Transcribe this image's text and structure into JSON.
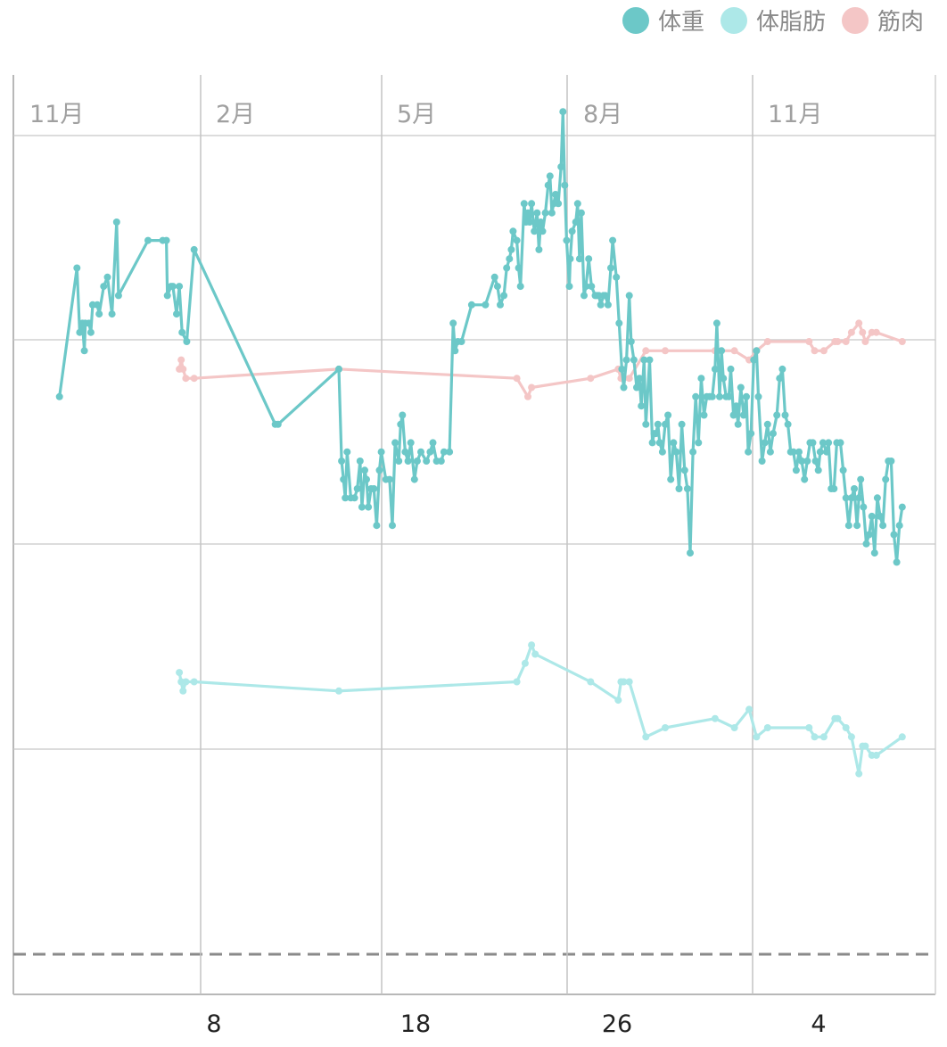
{
  "legend": [
    {
      "label": "体重",
      "color": "#6cc8c8"
    },
    {
      "label": "体脂肪",
      "color": "#ade8e8"
    },
    {
      "label": "筋肉",
      "color": "#f4c6c6"
    }
  ],
  "chart_data": {
    "type": "line",
    "month_labels": [
      "11月",
      "2月",
      "5月",
      "8月",
      "11月"
    ],
    "bottom_labels": [
      "8",
      "18",
      "26",
      "4"
    ],
    "grid": true,
    "legend_position": "top-right",
    "series": [
      {
        "name": "体重",
        "color": "#6cc8c8",
        "points": [
          [
            0.05,
            0.35
          ],
          [
            0.069,
            0.21
          ],
          [
            0.072,
            0.28
          ],
          [
            0.075,
            0.27
          ],
          [
            0.077,
            0.3
          ],
          [
            0.078,
            0.27
          ],
          [
            0.082,
            0.27
          ],
          [
            0.084,
            0.28
          ],
          [
            0.086,
            0.25
          ],
          [
            0.091,
            0.25
          ],
          [
            0.093,
            0.26
          ],
          [
            0.098,
            0.23
          ],
          [
            0.102,
            0.22
          ],
          [
            0.107,
            0.26
          ],
          [
            0.112,
            0.16
          ],
          [
            0.114,
            0.24
          ],
          [
            0.146,
            0.18
          ],
          [
            0.162,
            0.18
          ],
          [
            0.166,
            0.18
          ],
          [
            0.167,
            0.24
          ],
          [
            0.171,
            0.23
          ],
          [
            0.173,
            0.23
          ],
          [
            0.177,
            0.26
          ],
          [
            0.18,
            0.23
          ],
          [
            0.183,
            0.28
          ],
          [
            0.188,
            0.29
          ],
          [
            0.196,
            0.19
          ],
          [
            0.284,
            0.38
          ],
          [
            0.287,
            0.38
          ],
          [
            0.353,
            0.32
          ],
          [
            0.356,
            0.42
          ],
          [
            0.358,
            0.44
          ],
          [
            0.36,
            0.46
          ],
          [
            0.362,
            0.41
          ],
          [
            0.366,
            0.46
          ],
          [
            0.37,
            0.46
          ],
          [
            0.373,
            0.45
          ],
          [
            0.376,
            0.42
          ],
          [
            0.378,
            0.47
          ],
          [
            0.381,
            0.43
          ],
          [
            0.383,
            0.44
          ],
          [
            0.385,
            0.47
          ],
          [
            0.388,
            0.45
          ],
          [
            0.391,
            0.45
          ],
          [
            0.394,
            0.49
          ],
          [
            0.397,
            0.43
          ],
          [
            0.399,
            0.41
          ],
          [
            0.404,
            0.44
          ],
          [
            0.408,
            0.44
          ],
          [
            0.411,
            0.49
          ],
          [
            0.414,
            0.4
          ],
          [
            0.418,
            0.42
          ],
          [
            0.42,
            0.38
          ],
          [
            0.422,
            0.37
          ],
          [
            0.425,
            0.41
          ],
          [
            0.428,
            0.42
          ],
          [
            0.431,
            0.4
          ],
          [
            0.435,
            0.44
          ],
          [
            0.438,
            0.42
          ],
          [
            0.442,
            0.41
          ],
          [
            0.448,
            0.42
          ],
          [
            0.452,
            0.41
          ],
          [
            0.455,
            0.4
          ],
          [
            0.459,
            0.42
          ],
          [
            0.464,
            0.42
          ],
          [
            0.467,
            0.41
          ],
          [
            0.473,
            0.41
          ],
          [
            0.477,
            0.27
          ],
          [
            0.479,
            0.3
          ],
          [
            0.482,
            0.29
          ],
          [
            0.486,
            0.29
          ],
          [
            0.497,
            0.25
          ],
          [
            0.512,
            0.25
          ],
          [
            0.522,
            0.22
          ],
          [
            0.525,
            0.23
          ],
          [
            0.528,
            0.25
          ],
          [
            0.532,
            0.24
          ],
          [
            0.535,
            0.21
          ],
          [
            0.538,
            0.2
          ],
          [
            0.54,
            0.19
          ],
          [
            0.542,
            0.17
          ],
          [
            0.546,
            0.18
          ],
          [
            0.548,
            0.21
          ],
          [
            0.55,
            0.23
          ],
          [
            0.554,
            0.14
          ],
          [
            0.556,
            0.16
          ],
          [
            0.558,
            0.15
          ],
          [
            0.56,
            0.16
          ],
          [
            0.562,
            0.14
          ],
          [
            0.565,
            0.17
          ],
          [
            0.568,
            0.15
          ],
          [
            0.57,
            0.19
          ],
          [
            0.572,
            0.16
          ],
          [
            0.574,
            0.17
          ],
          [
            0.577,
            0.15
          ],
          [
            0.58,
            0.12
          ],
          [
            0.582,
            0.11
          ],
          [
            0.584,
            0.15
          ],
          [
            0.586,
            0.14
          ],
          [
            0.588,
            0.13
          ],
          [
            0.591,
            0.14
          ],
          [
            0.594,
            0.1
          ],
          [
            0.596,
            0.04
          ],
          [
            0.598,
            0.12
          ],
          [
            0.6,
            0.18
          ],
          [
            0.603,
            0.23
          ],
          [
            0.604,
            0.2
          ],
          [
            0.606,
            0.17
          ],
          [
            0.61,
            0.16
          ],
          [
            0.612,
            0.14
          ],
          [
            0.614,
            0.2
          ],
          [
            0.616,
            0.15
          ],
          [
            0.619,
            0.24
          ],
          [
            0.621,
            0.23
          ],
          [
            0.624,
            0.2
          ],
          [
            0.627,
            0.23
          ],
          [
            0.631,
            0.24
          ],
          [
            0.633,
            0.24
          ],
          [
            0.635,
            0.24
          ],
          [
            0.637,
            0.25
          ],
          [
            0.64,
            0.24
          ],
          [
            0.642,
            0.24
          ],
          [
            0.645,
            0.25
          ],
          [
            0.648,
            0.21
          ],
          [
            0.65,
            0.18
          ],
          [
            0.654,
            0.22
          ],
          [
            0.657,
            0.27
          ],
          [
            0.66,
            0.32
          ],
          [
            0.662,
            0.34
          ],
          [
            0.665,
            0.31
          ],
          [
            0.668,
            0.24
          ],
          [
            0.67,
            0.29
          ],
          [
            0.673,
            0.31
          ],
          [
            0.676,
            0.34
          ],
          [
            0.679,
            0.33
          ],
          [
            0.681,
            0.36
          ],
          [
            0.684,
            0.31
          ],
          [
            0.686,
            0.38
          ],
          [
            0.69,
            0.31
          ],
          [
            0.693,
            0.4
          ],
          [
            0.695,
            0.39
          ],
          [
            0.697,
            0.39
          ],
          [
            0.699,
            0.38
          ],
          [
            0.701,
            0.4
          ],
          [
            0.704,
            0.41
          ],
          [
            0.707,
            0.38
          ],
          [
            0.71,
            0.37
          ],
          [
            0.713,
            0.44
          ],
          [
            0.716,
            0.4
          ],
          [
            0.719,
            0.41
          ],
          [
            0.722,
            0.45
          ],
          [
            0.725,
            0.38
          ],
          [
            0.728,
            0.43
          ],
          [
            0.731,
            0.45
          ],
          [
            0.734,
            0.52
          ],
          [
            0.737,
            0.41
          ],
          [
            0.74,
            0.35
          ],
          [
            0.743,
            0.4
          ],
          [
            0.746,
            0.33
          ],
          [
            0.749,
            0.37
          ],
          [
            0.752,
            0.35
          ],
          [
            0.755,
            0.35
          ],
          [
            0.758,
            0.35
          ],
          [
            0.761,
            0.32
          ],
          [
            0.763,
            0.27
          ],
          [
            0.766,
            0.35
          ],
          [
            0.768,
            0.3
          ],
          [
            0.77,
            0.33
          ],
          [
            0.773,
            0.35
          ],
          [
            0.776,
            0.35
          ],
          [
            0.778,
            0.32
          ],
          [
            0.781,
            0.37
          ],
          [
            0.784,
            0.36
          ],
          [
            0.786,
            0.38
          ],
          [
            0.789,
            0.34
          ],
          [
            0.792,
            0.37
          ],
          [
            0.795,
            0.35
          ],
          [
            0.797,
            0.41
          ],
          [
            0.8,
            0.39
          ],
          [
            0.803,
            0.31
          ],
          [
            0.806,
            0.3
          ],
          [
            0.808,
            0.35
          ],
          [
            0.812,
            0.42
          ],
          [
            0.815,
            0.4
          ],
          [
            0.818,
            0.38
          ],
          [
            0.821,
            0.41
          ],
          [
            0.824,
            0.39
          ],
          [
            0.828,
            0.37
          ],
          [
            0.831,
            0.33
          ],
          [
            0.834,
            0.32
          ],
          [
            0.837,
            0.37
          ],
          [
            0.84,
            0.38
          ],
          [
            0.843,
            0.41
          ],
          [
            0.846,
            0.41
          ],
          [
            0.849,
            0.43
          ],
          [
            0.852,
            0.41
          ],
          [
            0.855,
            0.42
          ],
          [
            0.858,
            0.44
          ],
          [
            0.861,
            0.42
          ],
          [
            0.864,
            0.4
          ],
          [
            0.867,
            0.4
          ],
          [
            0.87,
            0.42
          ],
          [
            0.873,
            0.43
          ],
          [
            0.875,
            0.41
          ],
          [
            0.878,
            0.4
          ],
          [
            0.882,
            0.41
          ],
          [
            0.884,
            0.4
          ],
          [
            0.887,
            0.45
          ],
          [
            0.89,
            0.45
          ],
          [
            0.893,
            0.4
          ],
          [
            0.897,
            0.4
          ],
          [
            0.9,
            0.43
          ],
          [
            0.903,
            0.46
          ],
          [
            0.906,
            0.49
          ],
          [
            0.909,
            0.46
          ],
          [
            0.912,
            0.45
          ],
          [
            0.915,
            0.49
          ],
          [
            0.917,
            0.46
          ],
          [
            0.919,
            0.44
          ],
          [
            0.922,
            0.47
          ],
          [
            0.925,
            0.51
          ],
          [
            0.928,
            0.5
          ],
          [
            0.931,
            0.48
          ],
          [
            0.934,
            0.52
          ],
          [
            0.937,
            0.46
          ],
          [
            0.94,
            0.48
          ],
          [
            0.943,
            0.49
          ],
          [
            0.946,
            0.44
          ],
          [
            0.949,
            0.42
          ],
          [
            0.952,
            0.42
          ],
          [
            0.955,
            0.5
          ],
          [
            0.958,
            0.53
          ],
          [
            0.961,
            0.49
          ],
          [
            0.964,
            0.47
          ]
        ]
      },
      {
        "name": "体脂肪",
        "color": "#ade8e8",
        "points": [
          [
            0.18,
            0.65
          ],
          [
            0.182,
            0.66
          ],
          [
            0.184,
            0.67
          ],
          [
            0.187,
            0.66
          ],
          [
            0.196,
            0.66
          ],
          [
            0.353,
            0.67
          ],
          [
            0.546,
            0.66
          ],
          [
            0.555,
            0.64
          ],
          [
            0.562,
            0.62
          ],
          [
            0.566,
            0.63
          ],
          [
            0.626,
            0.66
          ],
          [
            0.656,
            0.68
          ],
          [
            0.659,
            0.66
          ],
          [
            0.662,
            0.66
          ],
          [
            0.668,
            0.66
          ],
          [
            0.686,
            0.72
          ],
          [
            0.707,
            0.71
          ],
          [
            0.761,
            0.7
          ],
          [
            0.782,
            0.71
          ],
          [
            0.798,
            0.69
          ],
          [
            0.806,
            0.72
          ],
          [
            0.818,
            0.71
          ],
          [
            0.863,
            0.71
          ],
          [
            0.869,
            0.72
          ],
          [
            0.879,
            0.72
          ],
          [
            0.891,
            0.7
          ],
          [
            0.894,
            0.7
          ],
          [
            0.903,
            0.71
          ],
          [
            0.909,
            0.72
          ],
          [
            0.917,
            0.76
          ],
          [
            0.921,
            0.73
          ],
          [
            0.924,
            0.73
          ],
          [
            0.931,
            0.74
          ],
          [
            0.936,
            0.74
          ],
          [
            0.964,
            0.72
          ]
        ]
      },
      {
        "name": "筋肉",
        "color": "#f4c6c6",
        "points": [
          [
            0.18,
            0.32
          ],
          [
            0.182,
            0.31
          ],
          [
            0.184,
            0.32
          ],
          [
            0.187,
            0.33
          ],
          [
            0.196,
            0.33
          ],
          [
            0.353,
            0.32
          ],
          [
            0.546,
            0.33
          ],
          [
            0.558,
            0.35
          ],
          [
            0.562,
            0.34
          ],
          [
            0.626,
            0.33
          ],
          [
            0.656,
            0.32
          ],
          [
            0.659,
            0.33
          ],
          [
            0.662,
            0.33
          ],
          [
            0.668,
            0.33
          ],
          [
            0.686,
            0.3
          ],
          [
            0.707,
            0.3
          ],
          [
            0.761,
            0.3
          ],
          [
            0.782,
            0.3
          ],
          [
            0.798,
            0.31
          ],
          [
            0.806,
            0.3
          ],
          [
            0.818,
            0.29
          ],
          [
            0.863,
            0.29
          ],
          [
            0.869,
            0.3
          ],
          [
            0.879,
            0.3
          ],
          [
            0.891,
            0.29
          ],
          [
            0.894,
            0.29
          ],
          [
            0.903,
            0.29
          ],
          [
            0.909,
            0.28
          ],
          [
            0.917,
            0.27
          ],
          [
            0.921,
            0.28
          ],
          [
            0.924,
            0.29
          ],
          [
            0.931,
            0.28
          ],
          [
            0.936,
            0.28
          ],
          [
            0.964,
            0.29
          ]
        ]
      }
    ]
  }
}
